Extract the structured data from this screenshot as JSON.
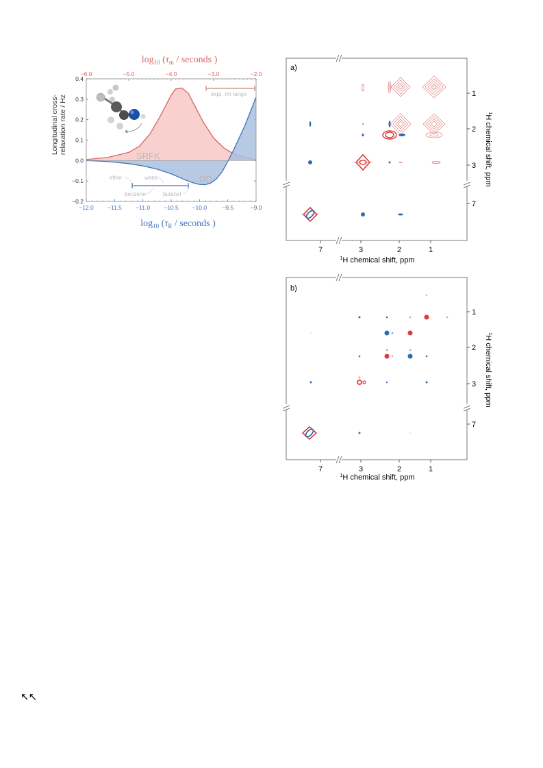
{
  "colors": {
    "srfk": "#d9625f",
    "srfk_fill": "#f7c9c7",
    "dd": "#3f73b8",
    "dd_fill": "#a9bfe0",
    "neg_peak": "#2a6cb5",
    "pos_peak": "#e03a3a",
    "bracket": "#c08b6d",
    "faint_text": "#b8b8b8"
  },
  "relaxation_plot": {
    "top_axis_label_prefix": "log",
    "top_axis_label_sub": "10",
    "top_axis_label_tau": "τ",
    "top_axis_label_tau_sub": "m",
    "top_axis_label_suffix": " / seconds",
    "bottom_axis_label_prefix": "log",
    "bottom_axis_label_sub": "10",
    "bottom_axis_label_tau": "τ",
    "bottom_axis_label_tau_sub": "R",
    "bottom_axis_label_suffix": " / seconds",
    "y_label_line1": "Longitudinal cross-",
    "y_label_line2": "relaxation rate / Hz",
    "srfk_label": "SRFK",
    "dd_label": "DD",
    "expt_label": "expt. τm range",
    "solvents": {
      "ether": "ether",
      "water": "water",
      "benzene": "benzene",
      "butanol": "butanol"
    }
  },
  "chart_data": {
    "type": "area",
    "title": "",
    "xlabel": "log10(τR / seconds)",
    "x2label": "log10(τm / seconds)",
    "ylabel": "Longitudinal cross-relaxation rate / Hz",
    "xlim": [
      -12.0,
      -9.0
    ],
    "x2lim": [
      -6.0,
      -2.0
    ],
    "ylim": [
      -0.2,
      0.4
    ],
    "x_ticks": [
      "−12.0",
      "−11.5",
      "−11.0",
      "−10.5",
      "−10.0",
      "−9.5",
      "−9.0"
    ],
    "x2_ticks": [
      "−6.0",
      "−5.0",
      "−4.0",
      "−3.0",
      "−2.0"
    ],
    "y_ticks": [
      "0.4",
      "0.3",
      "0.2",
      "0.1",
      "0.0",
      "−0.1",
      "−0.2"
    ],
    "series": [
      {
        "name": "SRFK",
        "axis": "top",
        "x": [
          -6.0,
          -5.5,
          -5.0,
          -4.75,
          -4.5,
          -4.25,
          -4.1,
          -4.0,
          -3.9,
          -3.75,
          -3.6,
          -3.5,
          -3.25,
          -3.0,
          -2.75,
          -2.5,
          -2.25,
          -2.0
        ],
        "y": [
          0.005,
          0.015,
          0.04,
          0.07,
          0.13,
          0.22,
          0.28,
          0.32,
          0.35,
          0.355,
          0.33,
          0.29,
          0.19,
          0.11,
          0.06,
          0.03,
          0.015,
          0.005
        ]
      },
      {
        "name": "DD",
        "axis": "bottom",
        "x": [
          -12.0,
          -11.75,
          -11.5,
          -11.25,
          -11.0,
          -10.75,
          -10.5,
          -10.25,
          -10.1,
          -10.0,
          -9.9,
          -9.8,
          -9.7,
          -9.6,
          -9.5,
          -9.4,
          -9.3,
          -9.2,
          -9.1,
          -9.0
        ],
        "y": [
          0.0,
          -0.003,
          -0.008,
          -0.015,
          -0.026,
          -0.042,
          -0.065,
          -0.095,
          -0.11,
          -0.117,
          -0.118,
          -0.11,
          -0.09,
          -0.055,
          -0.005,
          0.05,
          0.11,
          0.17,
          0.24,
          0.31
        ]
      }
    ],
    "annotations": [
      "SRFK",
      "DD",
      "expt. τm range",
      "ether",
      "water",
      "benzene",
      "butanol"
    ]
  },
  "nmr_a": {
    "panel_label": "a)",
    "x_axis_title": "H chemical shift, ppm",
    "y_axis_title": "H chemical shift, ppm",
    "iso": "1",
    "x_ticks": [
      "7",
      "3",
      "2",
      "1"
    ],
    "y_ticks": [
      "1",
      "2",
      "3",
      "7"
    ]
  },
  "nmr_b": {
    "panel_label": "b)",
    "x_axis_title": "H chemical shift, ppm",
    "y_axis_title": "H chemical shift, ppm",
    "iso": "1",
    "x_ticks": [
      "7",
      "3",
      "2",
      "1"
    ],
    "y_ticks": [
      "1",
      "2",
      "3",
      "7"
    ]
  },
  "footer": {
    "glyph": "↖↖"
  }
}
